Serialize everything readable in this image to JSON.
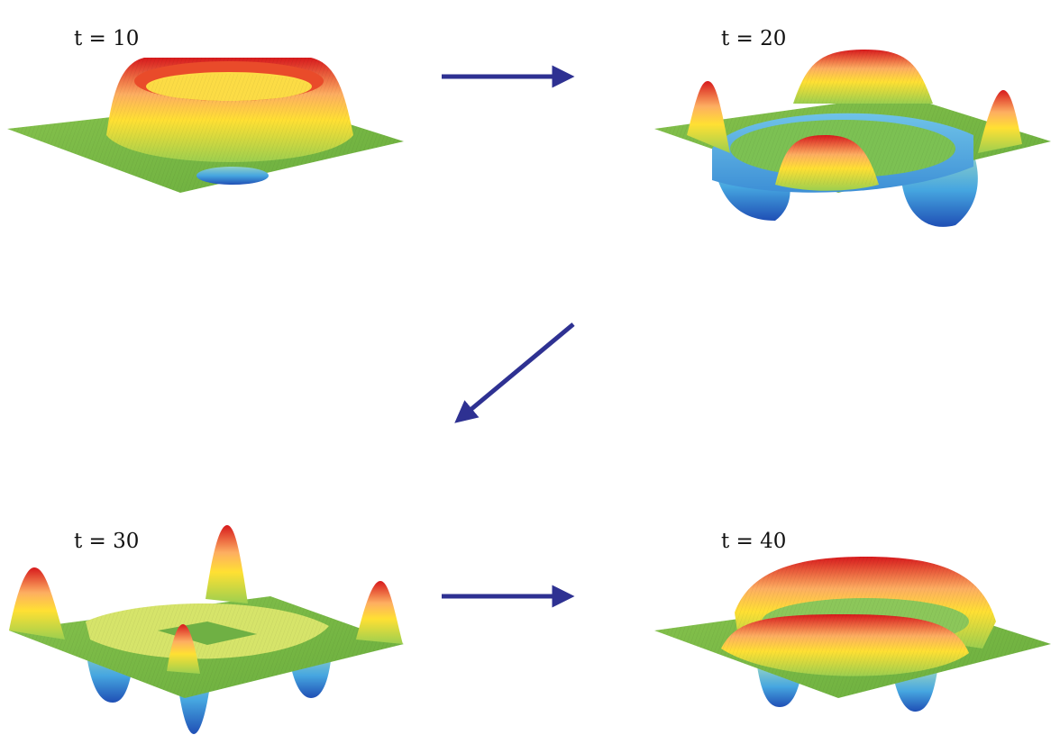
{
  "panels": [
    {
      "time_label": "t = 10",
      "t": 10,
      "shape": "ring"
    },
    {
      "time_label": "t = 20",
      "t": 20,
      "shape": "square-ring-with-lobes"
    },
    {
      "time_label": "t = 30",
      "t": 30,
      "shape": "corner-peaks"
    },
    {
      "time_label": "t = 40",
      "t": 40,
      "shape": "double-ring"
    }
  ],
  "arrows": [
    {
      "from": "t = 10",
      "to": "t = 20",
      "direction": "right"
    },
    {
      "from": "t = 20",
      "to": "t = 30",
      "direction": "down-left"
    },
    {
      "from": "t = 30",
      "to": "t = 40",
      "direction": "right"
    }
  ],
  "colors": {
    "arrow": "#2e3192",
    "surface_high": "#d7191c",
    "surface_mid": "#ffe033",
    "surface_flat": "#7fbf4a",
    "surface_low": "#2c6fd1"
  }
}
